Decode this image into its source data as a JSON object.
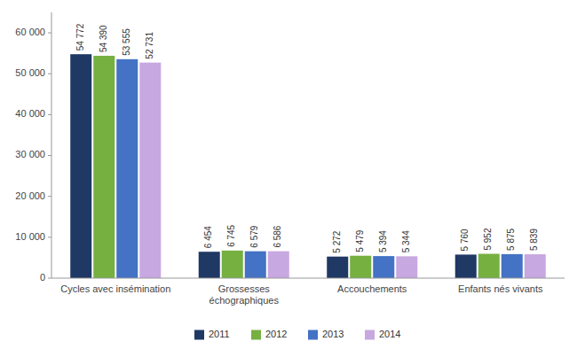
{
  "chart_data": {
    "type": "bar",
    "categories": [
      "Cycles avec insémination",
      "Grossesses\néchographiques",
      "Accouchements",
      "Enfants nés vivants"
    ],
    "series": [
      {
        "name": "2011",
        "color": "#1f3864",
        "values": [
          54772,
          6454,
          5272,
          5760
        ],
        "value_labels": [
          "54 772",
          "6 454",
          "5 272",
          "5 760"
        ]
      },
      {
        "name": "2012",
        "color": "#76b041",
        "values": [
          54390,
          6745,
          5479,
          5952
        ],
        "value_labels": [
          "54 390",
          "6 745",
          "5 479",
          "5 952"
        ]
      },
      {
        "name": "2013",
        "color": "#4472c4",
        "values": [
          53555,
          6579,
          5394,
          5875
        ],
        "value_labels": [
          "53 555",
          "6 579",
          "5 394",
          "5 875"
        ]
      },
      {
        "name": "2014",
        "color": "#c8a8e0",
        "values": [
          52731,
          6586,
          5344,
          5839
        ],
        "value_labels": [
          "52 731",
          "6 586",
          "5 344",
          "5 839"
        ]
      }
    ],
    "ylim": [
      0,
      65000
    ],
    "yticks": [
      0,
      {
        "value": 10000,
        "label": "10 000"
      },
      {
        "value": 20000,
        "label": "20 000"
      },
      {
        "value": 30000,
        "label": "30 000"
      },
      {
        "value": 40000,
        "label": "40 000"
      },
      {
        "value": 50000,
        "label": "50 000"
      },
      {
        "value": 60000,
        "label": "60 000"
      }
    ],
    "grid": false,
    "legend": "bottom",
    "data_labels": true
  }
}
